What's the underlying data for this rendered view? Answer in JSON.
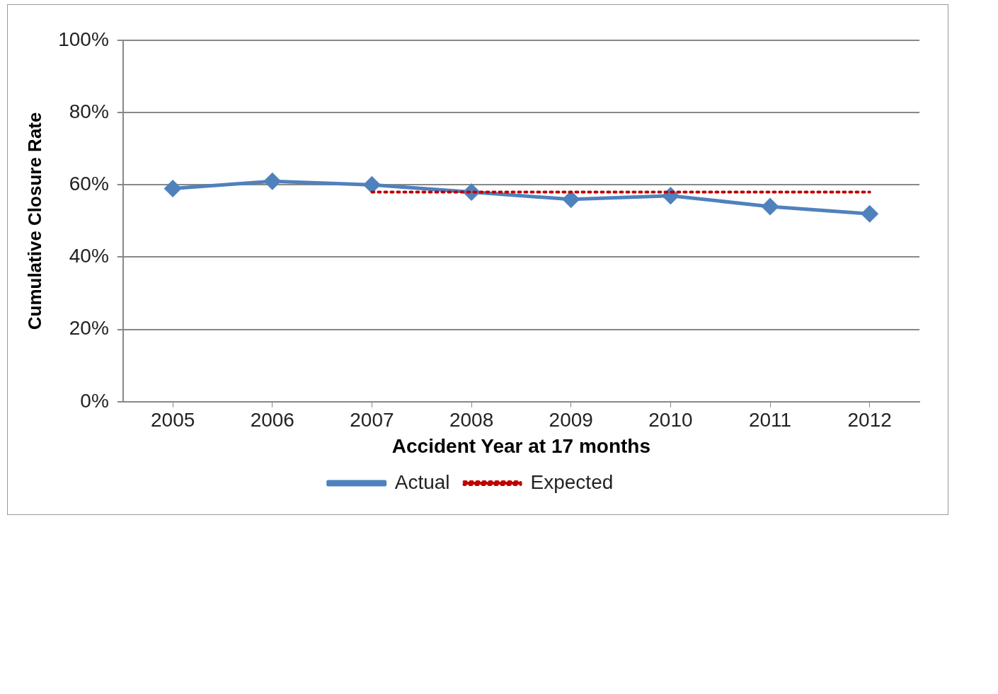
{
  "chart_data": {
    "type": "line",
    "xlabel": "Accident Year at 17 months",
    "ylabel": "Cumulative Closure Rate",
    "categories": [
      "2005",
      "2006",
      "2007",
      "2008",
      "2009",
      "2010",
      "2011",
      "2012"
    ],
    "series": [
      {
        "name": "Actual",
        "color": "#4f81bd",
        "values": [
          59,
          61,
          60,
          58,
          56,
          57,
          54,
          52
        ],
        "marker": "diamond",
        "line_style": "solid"
      },
      {
        "name": "Expected",
        "color": "#c00000",
        "values": [
          null,
          null,
          58,
          58,
          58,
          58,
          58,
          58
        ],
        "marker": "none",
        "line_style": "dotted"
      }
    ],
    "ylim": [
      0,
      100
    ],
    "yticks": [
      {
        "value": 0,
        "label": "0%"
      },
      {
        "value": 20,
        "label": "20%"
      },
      {
        "value": 40,
        "label": "40%"
      },
      {
        "value": 60,
        "label": "60%"
      },
      {
        "value": 80,
        "label": "80%"
      },
      {
        "value": 100,
        "label": "100%"
      }
    ],
    "grid": "y",
    "legend": "bottom"
  }
}
